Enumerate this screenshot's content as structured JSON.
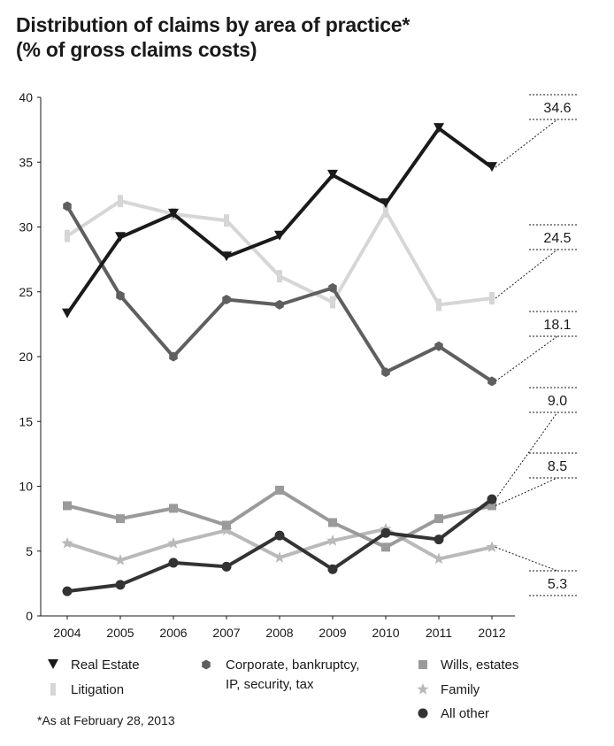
{
  "title": "Distribution of claims by area of practice*",
  "subtitle": "(% of gross claims costs)",
  "footnote": "*As at February 28, 2013",
  "chart_data": {
    "type": "line",
    "title": "Distribution of claims by area of practice*",
    "subtitle": "(% of gross claims costs)",
    "x": [
      "2004",
      "2005",
      "2006",
      "2007",
      "2008",
      "2009",
      "2010",
      "2011",
      "2012"
    ],
    "ylim": [
      0,
      40
    ],
    "yticks": [
      0,
      5,
      10,
      15,
      20,
      25,
      30,
      35,
      40
    ],
    "grid": false,
    "legend_position": "bottom",
    "series": [
      {
        "name": "Real Estate",
        "color": "#1a1a1a",
        "marker": "triangle-down",
        "values": [
          23.3,
          29.2,
          31.0,
          27.7,
          29.3,
          34.0,
          31.8,
          37.6,
          34.6
        ],
        "end_label": "34.6"
      },
      {
        "name": "Litigation",
        "color": "#d6d6d6",
        "marker": "bar",
        "values": [
          29.3,
          32.0,
          31.0,
          30.5,
          26.2,
          24.2,
          31.2,
          24.0,
          24.5
        ],
        "end_label": "24.5"
      },
      {
        "name": "Corporate, bankruptcy, IP, security, tax",
        "legend_lines": [
          "Corporate, bankruptcy,",
          "IP, security, tax"
        ],
        "color": "#5f5f5f",
        "marker": "hexagon",
        "values": [
          31.6,
          24.7,
          20.0,
          24.4,
          24.0,
          25.3,
          18.8,
          20.8,
          18.1
        ],
        "end_label": "18.1"
      },
      {
        "name": "Wills, estates",
        "color": "#9a9a9a",
        "marker": "square",
        "values": [
          8.5,
          7.5,
          8.3,
          7.0,
          9.7,
          7.2,
          5.3,
          7.5,
          8.5
        ],
        "end_label": "8.5"
      },
      {
        "name": "Family",
        "color": "#b9b9b9",
        "marker": "star",
        "values": [
          5.6,
          4.3,
          5.6,
          6.6,
          4.5,
          5.8,
          6.7,
          4.4,
          5.3
        ],
        "end_label": "5.3"
      },
      {
        "name": "All other",
        "color": "#333333",
        "marker": "circle",
        "values": [
          1.9,
          2.4,
          4.1,
          3.8,
          6.2,
          3.6,
          6.4,
          5.9,
          9.0
        ],
        "end_label": "9.0"
      }
    ]
  }
}
